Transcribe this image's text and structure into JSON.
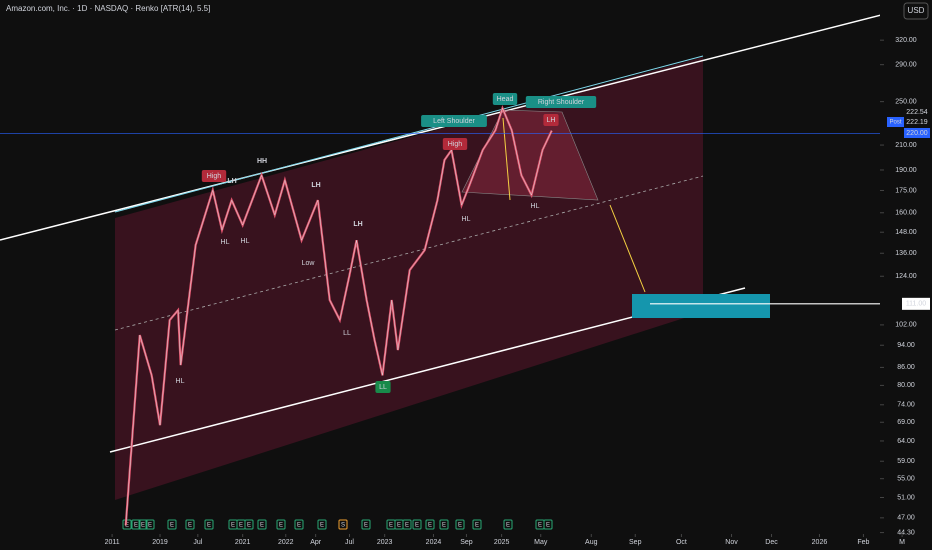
{
  "chart_data": {
    "type": "line",
    "title": "Amazon.com, Inc. · 1D · NASDAQ · Renko [ATR(14), 5.5]",
    "currency": "USD",
    "log_scale": true,
    "x": [
      28.6,
      31.8,
      34.5,
      36.4,
      38.6,
      40.5,
      41.1,
      44.5,
      48.4,
      50.5,
      52.7,
      55.2,
      59.5,
      62.5,
      64.8,
      68.6,
      72.3,
      75,
      77.3,
      79.5,
      81.1,
      83.4,
      85.2,
      87,
      89.1,
      90.5,
      93.2,
      96.6,
      99.5,
      101.1,
      102.7,
      105,
      106.8,
      109.8,
      112.7,
      114.3,
      116.4,
      118.6,
      120.9,
      123.4,
      125.5
    ],
    "series": [
      {
        "color": "#e0556e",
        "values": [
          45.6,
          97.9,
          83.3,
          68.2,
          104,
          108.2,
          86.8,
          140.5,
          175.2,
          149.3,
          168.3,
          152.3,
          186,
          158.6,
          182.4,
          143.3,
          168.3,
          112.7,
          104,
          124.6,
          143.3,
          112.7,
          96,
          83.3,
          112.7,
          92.2,
          127.1,
          137.7,
          168.3,
          197.7,
          205.8,
          165,
          178.8,
          205.8,
          222.9,
          243.5,
          222.9,
          186,
          171.8,
          205.8,
          222.54
        ]
      }
    ],
    "xlim": [
      0,
      212
    ],
    "ylim": [
      43,
      376
    ],
    "xticks": [
      {
        "value": 25.5,
        "label": "2011"
      },
      {
        "value": 36.4,
        "label": "2019"
      },
      {
        "value": 45,
        "label": "Jul"
      },
      {
        "value": 55.2,
        "label": "2021"
      },
      {
        "value": 65,
        "label": "2022"
      },
      {
        "value": 71.8,
        "label": "Apr"
      },
      {
        "value": 79.5,
        "label": "Jul"
      },
      {
        "value": 87.5,
        "label": "2023"
      },
      {
        "value": 98.6,
        "label": "2024"
      },
      {
        "value": 106.1,
        "label": "Sep"
      },
      {
        "value": 114.1,
        "label": "2025"
      },
      {
        "value": 123,
        "label": "May"
      },
      {
        "value": 134.5,
        "label": "Aug"
      },
      {
        "value": 144.5,
        "label": "Sep"
      },
      {
        "value": 155,
        "label": "Oct"
      },
      {
        "value": 166.4,
        "label": "Nov"
      },
      {
        "value": 175.5,
        "label": "Dec"
      },
      {
        "value": 186.4,
        "label": "2026"
      },
      {
        "value": 196.4,
        "label": "Feb"
      },
      {
        "value": 205.2,
        "label": "M"
      }
    ],
    "yticks": [
      {
        "value": 320,
        "label": "320.00"
      },
      {
        "value": 290,
        "label": "290.00"
      },
      {
        "value": 250,
        "label": "250.00"
      },
      {
        "value": 210,
        "label": "210.00"
      },
      {
        "value": 190,
        "label": "190.00"
      },
      {
        "value": 175,
        "label": "175.00"
      },
      {
        "value": 160,
        "label": "160.00"
      },
      {
        "value": 148,
        "label": "148.00"
      },
      {
        "value": 136,
        "label": "136.00"
      },
      {
        "value": 124,
        "label": "124.00"
      },
      {
        "value": 102,
        "label": "102.00"
      },
      {
        "value": 94,
        "label": "94.00"
      },
      {
        "value": 86,
        "label": "86.00"
      },
      {
        "value": 80,
        "label": "80.00"
      },
      {
        "value": 74,
        "label": "74.00"
      },
      {
        "value": 69,
        "label": "69.00"
      },
      {
        "value": 64,
        "label": "64.00"
      },
      {
        "value": 59,
        "label": "59.00"
      },
      {
        "value": 55,
        "label": "55.00"
      },
      {
        "value": 51,
        "label": "51.00"
      },
      {
        "value": 47,
        "label": "47.00"
      },
      {
        "value": 44.3,
        "label": "44.30"
      }
    ],
    "last_price": {
      "tag": "Post",
      "values": [
        222.54,
        222.19,
        220
      ],
      "labels": [
        "222.54",
        "222.19",
        "220.00"
      ]
    },
    "target": {
      "value": 111,
      "label": "111.00"
    },
    "annotations": [
      "High",
      "LH",
      "HH",
      "LH",
      "HL",
      "HL",
      "Low",
      "LH",
      "LL",
      "HL",
      "LL",
      "High",
      "Left Shoulder",
      "Head",
      "Right Shoulder",
      "LH",
      "HL",
      "HL"
    ],
    "events": [
      "E",
      "E",
      "E",
      "E",
      "E",
      "E",
      "E",
      "E",
      "E",
      "E",
      "E",
      "E",
      "E",
      "E",
      "S",
      "E",
      "E",
      "E",
      "E",
      "E",
      "E",
      "E",
      "E",
      "E",
      "E",
      "E",
      "E"
    ]
  }
}
